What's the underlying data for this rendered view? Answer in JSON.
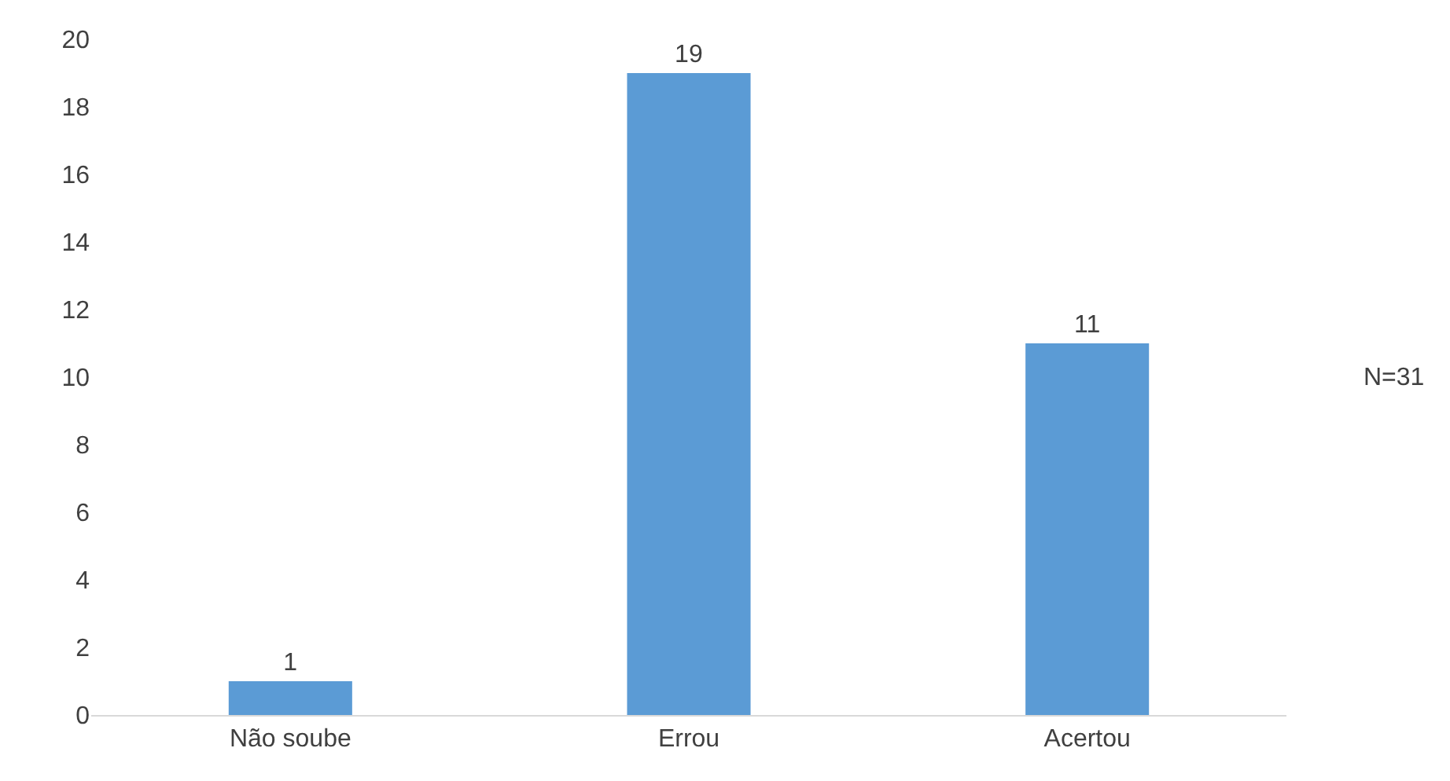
{
  "chart_data": {
    "type": "bar",
    "categories": [
      "Não soube",
      "Errou",
      "Acertou"
    ],
    "values": [
      1,
      19,
      11
    ],
    "color": "#5b9bd5",
    "ylim": [
      0,
      20
    ],
    "yticks": [
      0,
      2,
      4,
      6,
      8,
      10,
      12,
      14,
      16,
      18,
      20
    ],
    "grid": false,
    "data_labels": true,
    "annotations": [
      "N=31"
    ]
  }
}
